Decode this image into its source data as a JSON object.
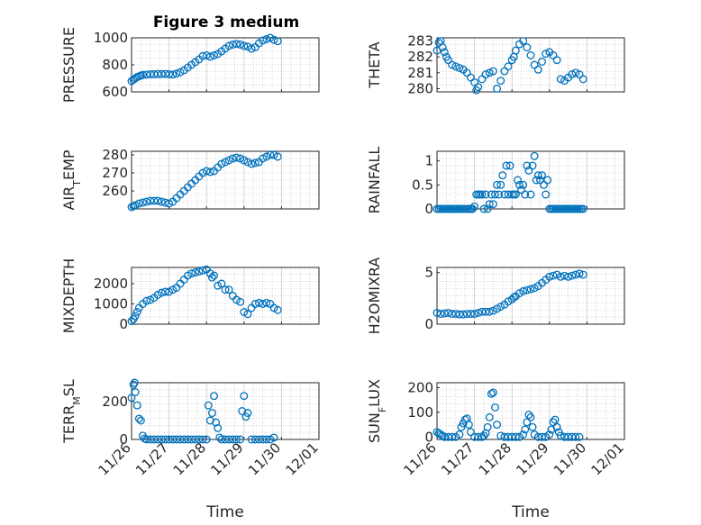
{
  "figure_title": "Figure 3 medium",
  "colors": {
    "marker": "#0072bd",
    "axis": "#262626",
    "grid": "#b3b3b3"
  },
  "chart_data": [
    {
      "type": "scatter",
      "panel": "top-left",
      "title": "Figure 3 medium",
      "ylabel": "PRESSURE",
      "ylabel_parts": [
        {
          "t": "PRESSURE"
        }
      ],
      "xlabel": "",
      "ylim": [
        600,
        1000
      ],
      "yticks": [
        600,
        800,
        1000
      ],
      "yticklabels": [
        "600",
        "800",
        "1000"
      ],
      "xlim": [
        0,
        5
      ],
      "xticks": [
        0,
        1,
        2,
        3,
        4,
        5
      ],
      "xticklabels": [
        "11/26",
        "11/27",
        "11/28",
        "11/29",
        "11/30",
        "12/01"
      ],
      "show_xticklabels": false,
      "grid": true,
      "x": [
        0.0,
        0.05,
        0.1,
        0.15,
        0.2,
        0.25,
        0.3,
        0.4,
        0.5,
        0.6,
        0.7,
        0.8,
        0.9,
        1.0,
        1.1,
        1.2,
        1.3,
        1.4,
        1.5,
        1.6,
        1.7,
        1.8,
        1.9,
        2.0,
        2.1,
        2.2,
        2.3,
        2.4,
        2.5,
        2.6,
        2.7,
        2.8,
        2.9,
        3.0,
        3.1,
        3.2,
        3.3,
        3.4,
        3.5,
        3.6,
        3.7,
        3.8,
        3.9
      ],
      "y": [
        680,
        690,
        700,
        710,
        715,
        720,
        725,
        728,
        730,
        730,
        732,
        732,
        733,
        730,
        728,
        735,
        745,
        760,
        780,
        800,
        820,
        840,
        865,
        870,
        860,
        870,
        880,
        900,
        920,
        940,
        950,
        955,
        950,
        940,
        935,
        920,
        930,
        960,
        980,
        990,
        1000,
        985,
        975
      ]
    },
    {
      "type": "scatter",
      "panel": "top-right",
      "ylabel": "THETA",
      "ylabel_parts": [
        {
          "t": "THETA"
        }
      ],
      "xlabel": "",
      "ylim": [
        279.8,
        283.2
      ],
      "yticks": [
        280,
        281,
        282,
        283
      ],
      "yticklabels": [
        "280",
        "281",
        "282",
        "283"
      ],
      "xlim": [
        0,
        5
      ],
      "xticks": [
        0,
        1,
        2,
        3,
        4,
        5
      ],
      "xticklabels": [
        "11/26",
        "11/27",
        "11/28",
        "11/29",
        "11/30",
        "12/01"
      ],
      "show_xticklabels": false,
      "grid": true,
      "x": [
        0.0,
        0.05,
        0.1,
        0.15,
        0.2,
        0.25,
        0.3,
        0.4,
        0.5,
        0.6,
        0.7,
        0.8,
        0.9,
        1.0,
        1.05,
        1.1,
        1.2,
        1.3,
        1.4,
        1.5,
        1.6,
        1.7,
        1.8,
        1.9,
        2.0,
        2.05,
        2.1,
        2.2,
        2.3,
        2.4,
        2.5,
        2.6,
        2.7,
        2.8,
        2.9,
        3.0,
        3.1,
        3.2,
        3.3,
        3.4,
        3.5,
        3.6,
        3.7,
        3.8,
        3.9
      ],
      "y": [
        282.4,
        282.9,
        283.0,
        282.6,
        282.3,
        282.0,
        281.8,
        281.5,
        281.4,
        281.3,
        281.2,
        281.0,
        280.7,
        280.4,
        279.9,
        280.1,
        280.6,
        280.9,
        281.0,
        281.1,
        280.0,
        280.5,
        281.1,
        281.4,
        281.8,
        282.0,
        282.4,
        282.8,
        283.0,
        282.6,
        282.1,
        281.5,
        281.2,
        281.7,
        282.2,
        282.3,
        282.1,
        281.8,
        280.6,
        280.5,
        280.7,
        280.9,
        281.0,
        280.9,
        280.6
      ]
    },
    {
      "type": "scatter",
      "panel": "row2-left",
      "ylabel": "AIR_TEMP",
      "ylabel_parts": [
        {
          "t": "AIR"
        },
        {
          "t": "T",
          "sub": true
        },
        {
          "t": "EMP"
        }
      ],
      "xlabel": "",
      "ylim": [
        250,
        282
      ],
      "yticks": [
        260,
        270,
        280
      ],
      "yticklabels": [
        "260",
        "270",
        "280"
      ],
      "xlim": [
        0,
        5
      ],
      "xticks": [
        0,
        1,
        2,
        3,
        4,
        5
      ],
      "xticklabels": [
        "11/26",
        "11/27",
        "11/28",
        "11/29",
        "11/30",
        "12/01"
      ],
      "show_xticklabels": false,
      "grid": true,
      "x": [
        0.0,
        0.05,
        0.1,
        0.2,
        0.3,
        0.4,
        0.5,
        0.6,
        0.7,
        0.8,
        0.9,
        1.0,
        1.1,
        1.2,
        1.3,
        1.4,
        1.5,
        1.6,
        1.7,
        1.8,
        1.9,
        2.0,
        2.1,
        2.2,
        2.3,
        2.4,
        2.5,
        2.6,
        2.7,
        2.8,
        2.9,
        3.0,
        3.1,
        3.2,
        3.3,
        3.4,
        3.5,
        3.6,
        3.7,
        3.8,
        3.9
      ],
      "y": [
        251,
        251.5,
        252,
        253,
        253.5,
        254,
        254.5,
        254.5,
        254.5,
        254,
        253.5,
        253,
        254,
        256,
        258,
        260,
        262,
        264,
        266,
        268,
        270,
        271,
        270.5,
        271,
        273,
        275,
        276,
        277,
        278,
        278.5,
        278,
        277,
        276,
        275,
        275.5,
        276,
        278,
        279,
        280,
        280,
        279
      ]
    },
    {
      "type": "scatter",
      "panel": "row2-right",
      "ylabel": "RAINFALL",
      "ylabel_parts": [
        {
          "t": "RAINFALL"
        }
      ],
      "xlabel": "",
      "ylim": [
        0,
        1.2
      ],
      "yticks": [
        0,
        0.5,
        1
      ],
      "yticklabels": [
        "0",
        "0.5",
        "1"
      ],
      "xlim": [
        0,
        5
      ],
      "xticks": [
        0,
        1,
        2,
        3,
        4,
        5
      ],
      "xticklabels": [
        "11/26",
        "11/27",
        "11/28",
        "11/29",
        "11/30",
        "12/01"
      ],
      "show_xticklabels": false,
      "grid": true,
      "x": [
        0.0,
        0.05,
        0.1,
        0.15,
        0.2,
        0.25,
        0.3,
        0.35,
        0.4,
        0.45,
        0.5,
        0.55,
        0.6,
        0.65,
        0.7,
        0.75,
        0.8,
        0.85,
        0.9,
        0.95,
        1.0,
        1.05,
        1.1,
        1.15,
        1.2,
        1.25,
        1.3,
        1.35,
        1.4,
        1.45,
        1.5,
        1.55,
        1.6,
        1.65,
        1.7,
        1.75,
        1.8,
        1.85,
        1.9,
        1.95,
        2.0,
        2.05,
        2.1,
        2.15,
        2.2,
        2.25,
        2.3,
        2.35,
        2.4,
        2.45,
        2.5,
        2.55,
        2.6,
        2.65,
        2.7,
        2.75,
        2.8,
        2.85,
        2.9,
        2.95,
        3.0,
        3.05,
        3.1,
        3.15,
        3.2,
        3.25,
        3.3,
        3.35,
        3.4,
        3.45,
        3.5,
        3.55,
        3.6,
        3.65,
        3.7,
        3.75,
        3.8,
        3.85,
        3.9
      ],
      "y": [
        0,
        0,
        0,
        0,
        0,
        0,
        0,
        0,
        0,
        0,
        0,
        0,
        0,
        0,
        0,
        0,
        0,
        0,
        0,
        0,
        0.05,
        0.3,
        0.3,
        0.3,
        0.3,
        0,
        0.3,
        0,
        0.1,
        0.3,
        0.1,
        0.3,
        0.5,
        0.3,
        0.5,
        0.7,
        0.3,
        0.9,
        0.3,
        0.9,
        0.3,
        0.3,
        0.3,
        0.6,
        0.5,
        0.4,
        0.5,
        0.3,
        0.9,
        0.8,
        0.3,
        0.9,
        1.1,
        0.6,
        0.7,
        0.6,
        0.7,
        0.5,
        0.3,
        0.6,
        0,
        0,
        0,
        0,
        0,
        0,
        0,
        0,
        0,
        0,
        0,
        0,
        0,
        0,
        0,
        0,
        0,
        0,
        0
      ]
    },
    {
      "type": "scatter",
      "panel": "row3-left",
      "ylabel": "MIXDEPTH",
      "ylabel_parts": [
        {
          "t": "MIXDEPTH"
        }
      ],
      "xlabel": "",
      "ylim": [
        0,
        2800
      ],
      "yticks": [
        0,
        1000,
        2000
      ],
      "yticklabels": [
        "0",
        "1000",
        "2000"
      ],
      "xlim": [
        0,
        5
      ],
      "xticks": [
        0,
        1,
        2,
        3,
        4,
        5
      ],
      "xticklabels": [
        "11/26",
        "11/27",
        "11/28",
        "11/29",
        "11/30",
        "12/01"
      ],
      "show_xticklabels": false,
      "grid": true,
      "x": [
        0.0,
        0.05,
        0.1,
        0.15,
        0.2,
        0.3,
        0.4,
        0.5,
        0.6,
        0.7,
        0.8,
        0.9,
        1.0,
        1.1,
        1.2,
        1.3,
        1.4,
        1.5,
        1.6,
        1.7,
        1.8,
        1.9,
        2.0,
        2.1,
        2.15,
        2.2,
        2.3,
        2.4,
        2.5,
        2.6,
        2.7,
        2.8,
        2.9,
        3.0,
        3.1,
        3.2,
        3.3,
        3.4,
        3.5,
        3.6,
        3.7,
        3.8,
        3.9
      ],
      "y": [
        150,
        250,
        400,
        600,
        800,
        1000,
        1150,
        1200,
        1300,
        1450,
        1550,
        1600,
        1600,
        1700,
        1800,
        2000,
        2200,
        2400,
        2500,
        2550,
        2600,
        2650,
        2700,
        2500,
        2300,
        2400,
        1900,
        2000,
        1700,
        1700,
        1400,
        1200,
        1100,
        600,
        500,
        800,
        1000,
        1050,
        1000,
        1050,
        1000,
        800,
        700
      ]
    },
    {
      "type": "scatter",
      "panel": "row3-right",
      "ylabel": "H2OMIXRA",
      "ylabel_parts": [
        {
          "t": "H2OMIXRA"
        }
      ],
      "xlabel": "",
      "ylim": [
        0,
        5.5
      ],
      "yticks": [
        0,
        5
      ],
      "yticklabels": [
        "0",
        "5"
      ],
      "xlim": [
        0,
        5
      ],
      "xticks": [
        0,
        1,
        2,
        3,
        4,
        5
      ],
      "xticklabels": [
        "11/26",
        "11/27",
        "11/28",
        "11/29",
        "11/30",
        "12/01"
      ],
      "show_xticklabels": false,
      "grid": true,
      "x": [
        0.0,
        0.1,
        0.2,
        0.3,
        0.4,
        0.5,
        0.6,
        0.7,
        0.8,
        0.9,
        1.0,
        1.1,
        1.2,
        1.3,
        1.4,
        1.5,
        1.6,
        1.7,
        1.8,
        1.9,
        2.0,
        2.05,
        2.1,
        2.2,
        2.3,
        2.4,
        2.5,
        2.6,
        2.7,
        2.8,
        2.9,
        3.0,
        3.1,
        3.2,
        3.3,
        3.4,
        3.5,
        3.6,
        3.7,
        3.8,
        3.9
      ],
      "y": [
        1.1,
        1.0,
        1.05,
        1.1,
        1.0,
        1.0,
        0.95,
        0.95,
        1.0,
        1.0,
        1.0,
        1.1,
        1.2,
        1.2,
        1.2,
        1.3,
        1.5,
        1.7,
        1.9,
        2.2,
        2.4,
        2.6,
        2.7,
        3.0,
        3.2,
        3.3,
        3.4,
        3.5,
        3.7,
        4.0,
        4.3,
        4.6,
        4.7,
        4.8,
        4.6,
        4.7,
        4.6,
        4.7,
        4.8,
        4.9,
        4.8
      ]
    },
    {
      "type": "scatter",
      "panel": "bottom-left",
      "ylabel": "TERR_MSL",
      "ylabel_parts": [
        {
          "t": "TERR"
        },
        {
          "t": "M",
          "sub": true
        },
        {
          "t": "SL"
        }
      ],
      "xlabel": "Time",
      "ylim": [
        0,
        300
      ],
      "yticks": [
        0,
        200
      ],
      "yticklabels": [
        "0",
        "200"
      ],
      "xlim": [
        0,
        5
      ],
      "xticks": [
        0,
        1,
        2,
        3,
        4,
        5
      ],
      "xticklabels": [
        "11/26",
        "11/27",
        "11/28",
        "11/29",
        "11/30",
        "12/01"
      ],
      "show_xticklabels": true,
      "grid": true,
      "x": [
        0.0,
        0.05,
        0.08,
        0.1,
        0.15,
        0.2,
        0.25,
        0.3,
        0.35,
        0.4,
        0.5,
        0.6,
        0.7,
        0.8,
        0.9,
        1.0,
        1.1,
        1.2,
        1.3,
        1.4,
        1.5,
        1.6,
        1.7,
        1.8,
        1.9,
        2.0,
        2.05,
        2.1,
        2.15,
        2.2,
        2.25,
        2.3,
        2.35,
        2.4,
        2.5,
        2.6,
        2.7,
        2.8,
        2.9,
        2.95,
        3.0,
        3.05,
        3.1,
        3.2,
        3.3,
        3.4,
        3.5,
        3.6,
        3.7,
        3.8
      ],
      "y": [
        220,
        290,
        300,
        250,
        180,
        110,
        100,
        20,
        5,
        0,
        0,
        0,
        0,
        0,
        0,
        0,
        0,
        0,
        0,
        0,
        0,
        0,
        0,
        0,
        0,
        0,
        180,
        100,
        140,
        230,
        90,
        60,
        10,
        0,
        0,
        0,
        0,
        0,
        0,
        150,
        230,
        120,
        140,
        0,
        0,
        0,
        0,
        0,
        0,
        10
      ]
    },
    {
      "type": "scatter",
      "panel": "bottom-right",
      "ylabel": "SUN_FLUX",
      "ylabel_parts": [
        {
          "t": "SUN"
        },
        {
          "t": "F",
          "sub": true
        },
        {
          "t": "LUX"
        }
      ],
      "xlabel": "Time",
      "ylim": [
        -10,
        220
      ],
      "yticks": [
        0,
        100,
        200
      ],
      "yticklabels": [
        "0",
        "100",
        "200"
      ],
      "xlim": [
        0,
        5
      ],
      "xticks": [
        0,
        1,
        2,
        3,
        4,
        5
      ],
      "xticklabels": [
        "11/26",
        "11/27",
        "11/28",
        "11/29",
        "11/30",
        "12/01"
      ],
      "show_xticklabels": true,
      "grid": true,
      "x": [
        0.0,
        0.05,
        0.1,
        0.15,
        0.2,
        0.3,
        0.4,
        0.5,
        0.6,
        0.65,
        0.7,
        0.75,
        0.8,
        0.85,
        0.9,
        1.0,
        1.1,
        1.2,
        1.25,
        1.3,
        1.35,
        1.4,
        1.45,
        1.5,
        1.55,
        1.6,
        1.7,
        1.8,
        1.9,
        2.0,
        2.1,
        2.2,
        2.3,
        2.35,
        2.4,
        2.45,
        2.5,
        2.55,
        2.6,
        2.7,
        2.8,
        2.9,
        3.0,
        3.05,
        3.1,
        3.15,
        3.2,
        3.25,
        3.3,
        3.4,
        3.5,
        3.6,
        3.7,
        3.8
      ],
      "y": [
        20,
        15,
        10,
        5,
        0,
        0,
        0,
        0,
        10,
        40,
        55,
        70,
        75,
        50,
        20,
        0,
        0,
        0,
        5,
        15,
        40,
        80,
        175,
        180,
        120,
        50,
        5,
        0,
        0,
        0,
        0,
        0,
        10,
        30,
        60,
        90,
        80,
        40,
        10,
        0,
        0,
        0,
        10,
        30,
        60,
        70,
        40,
        20,
        5,
        0,
        0,
        0,
        0,
        0
      ]
    }
  ]
}
